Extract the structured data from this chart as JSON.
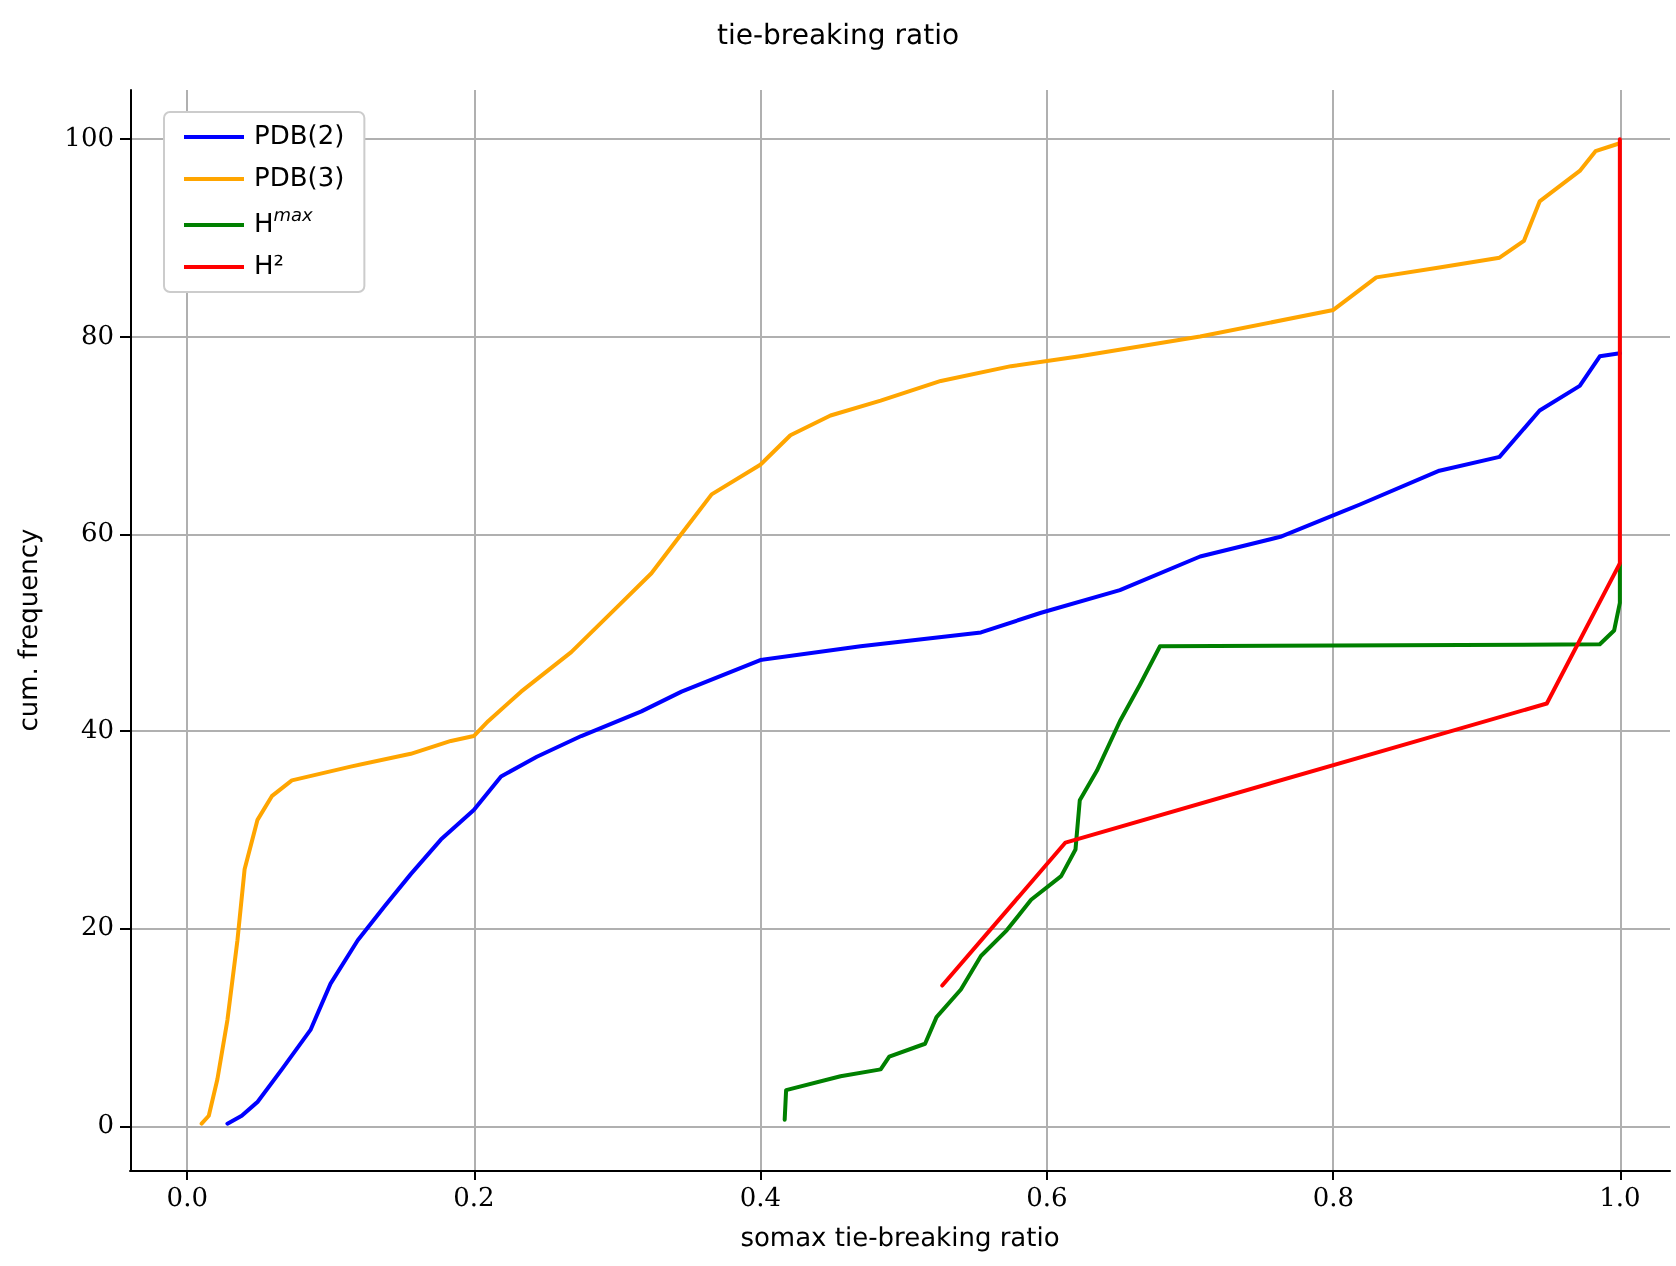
{
  "chart_data": {
    "type": "line",
    "title": "tie-breaking ratio",
    "xlabel": "somax tie-breaking ratio",
    "ylabel": "cum. frequency",
    "xlim": [
      -0.04,
      1.035
    ],
    "ylim": [
      -4.5,
      105
    ],
    "xticks": [
      {
        "value": 0,
        "label": "0.0"
      },
      {
        "value": 0.2,
        "label": "0.2"
      },
      {
        "value": 0.4,
        "label": "0.4"
      },
      {
        "value": 0.6,
        "label": "0.6"
      },
      {
        "value": 0.8,
        "label": "0.8"
      },
      {
        "value": 1,
        "label": "1.0"
      }
    ],
    "yticks": [
      0,
      20,
      40,
      60,
      80,
      100
    ],
    "grid": true,
    "legend": "top left",
    "marker": "none",
    "line_style": "solid",
    "series": [
      {
        "name": "PDB(2)",
        "color": "#0000ff",
        "x": [
          0.028,
          0.038,
          0.049,
          0.066,
          0.086,
          0.1,
          0.119,
          0.138,
          0.156,
          0.177,
          0.2,
          0.219,
          0.244,
          0.275,
          0.317,
          0.345,
          0.4,
          0.47,
          0.554,
          0.596,
          0.651,
          0.707,
          0.763,
          0.819,
          0.874,
          0.916,
          0.944,
          0.972,
          0.986,
          1.0
        ],
        "values": [
          0.2,
          1,
          2.4,
          5.7,
          9.7,
          14.4,
          18.8,
          22.3,
          25.5,
          29,
          32,
          35.4,
          37.4,
          39.5,
          42,
          44,
          47.2,
          48.6,
          50,
          52,
          54.3,
          57.7,
          59.7,
          63,
          66.4,
          67.8,
          72.5,
          75,
          78,
          78.3
        ]
      },
      {
        "name": "PDB(3)",
        "color": "#ffa500",
        "x": [
          0.01,
          0.015,
          0.021,
          0.028,
          0.035,
          0.04,
          0.049,
          0.059,
          0.073,
          0.114,
          0.156,
          0.184,
          0.2,
          0.21,
          0.233,
          0.268,
          0.303,
          0.324,
          0.345,
          0.366,
          0.4,
          0.421,
          0.449,
          0.484,
          0.526,
          0.575,
          0.623,
          0.707,
          0.8,
          0.83,
          0.874,
          0.916,
          0.933,
          0.944,
          0.972,
          0.983,
          1.0
        ],
        "values": [
          0.2,
          1,
          4.7,
          10.7,
          18.8,
          26,
          31,
          33.4,
          35,
          36.4,
          37.7,
          39,
          39.5,
          41,
          44,
          48,
          53,
          56,
          60,
          64,
          67,
          70,
          72,
          73.5,
          75.5,
          77,
          78,
          80,
          82.7,
          86,
          87,
          88,
          89.7,
          93.7,
          96.8,
          98.8,
          99.6
        ]
      },
      {
        "name": "H$^{max}$",
        "color": "#008000",
        "x": [
          0.417,
          0.418,
          0.456,
          0.484,
          0.49,
          0.515,
          0.523,
          0.54,
          0.554,
          0.572,
          0.589,
          0.61,
          0.62,
          0.623,
          0.635,
          0.651,
          0.665,
          0.679,
          0.986,
          0.996,
          1.0,
          1.0
        ],
        "values": [
          0.6,
          3.6,
          5,
          5.7,
          7,
          8.3,
          11,
          13.8,
          17.2,
          19.8,
          22.9,
          25.3,
          28,
          33,
          36,
          41,
          44.7,
          48.6,
          48.8,
          50.2,
          53,
          57
        ]
      },
      {
        "name": "H²",
        "color": "#ff0000",
        "x": [
          0.527,
          0.613,
          0.949,
          1.0,
          1.0
        ],
        "values": [
          14.2,
          28.7,
          42.8,
          57,
          100
        ]
      }
    ]
  }
}
